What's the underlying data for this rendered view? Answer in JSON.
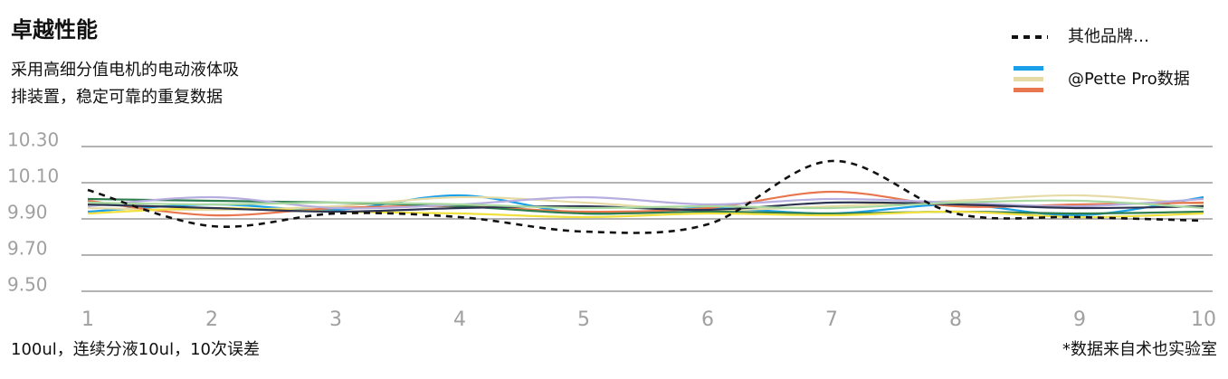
{
  "chart_data": {
    "type": "line",
    "title": "卓越性能",
    "subtitle": [
      "采用高细分值电机的电动液体吸",
      "排装置，稳定可靠的重复数据"
    ],
    "footnote": "100ul，连续分液10ul，10次误差",
    "source": "*数据来自术也实验室",
    "x": [
      1,
      2,
      3,
      4,
      5,
      6,
      7,
      8,
      9,
      10
    ],
    "xlim": [
      1,
      10
    ],
    "xticks": [
      1,
      2,
      3,
      4,
      5,
      6,
      7,
      8,
      9,
      10
    ],
    "ylim": [
      9.5,
      10.3
    ],
    "yticks": [
      {
        "value": 10.3,
        "label": "10.30"
      },
      {
        "value": 10.1,
        "label": "10.10"
      },
      {
        "value": 9.9,
        "label": "9.90"
      },
      {
        "value": 9.7,
        "label": "9.70"
      },
      {
        "value": 9.5,
        "label": "9.50"
      }
    ],
    "grid": true,
    "series": [
      {
        "name": "其他品牌…",
        "color": "#111111",
        "dashed": true,
        "values": [
          10.06,
          9.86,
          9.93,
          9.91,
          9.83,
          9.87,
          10.22,
          9.93,
          9.91,
          9.89
        ]
      },
      {
        "name": "@Pette Pro数据",
        "legend_colors": [
          "#1aa0e8",
          "#e6dba6",
          "#e8764e"
        ],
        "lines": [
          {
            "color": "#1aa0e8",
            "values": [
              9.94,
              9.98,
              9.95,
              10.03,
              9.93,
              9.96,
              9.93,
              9.98,
              9.92,
              10.02
            ]
          },
          {
            "color": "#e6dba6",
            "values": [
              9.96,
              9.95,
              9.97,
              10.02,
              9.99,
              9.95,
              9.97,
              10.0,
              10.03,
              9.98
            ]
          },
          {
            "color": "#e8764e",
            "values": [
              10.0,
              9.92,
              9.96,
              9.97,
              9.94,
              9.96,
              10.05,
              9.97,
              9.98,
              9.99
            ]
          },
          {
            "color": "#2e7d4f",
            "values": [
              10.01,
              10.0,
              9.99,
              9.97,
              9.93,
              9.94,
              9.93,
              9.94,
              9.93,
              9.94
            ]
          },
          {
            "color": "#b7aee0",
            "values": [
              9.97,
              10.02,
              9.96,
              9.98,
              10.02,
              9.98,
              10.01,
              9.99,
              9.97,
              10.01
            ]
          },
          {
            "color": "#f0e040",
            "values": [
              9.93,
              9.96,
              9.94,
              9.93,
              9.91,
              9.93,
              9.92,
              9.94,
              9.91,
              9.93
            ]
          },
          {
            "color": "#2d3550",
            "values": [
              9.98,
              9.96,
              9.94,
              9.96,
              9.97,
              9.95,
              9.99,
              9.98,
              9.96,
              9.97
            ]
          },
          {
            "color": "#a8d8a0",
            "values": [
              9.99,
              9.98,
              9.99,
              9.98,
              9.96,
              9.97,
              9.96,
              9.99,
              10.0,
              9.96
            ]
          }
        ]
      }
    ]
  }
}
